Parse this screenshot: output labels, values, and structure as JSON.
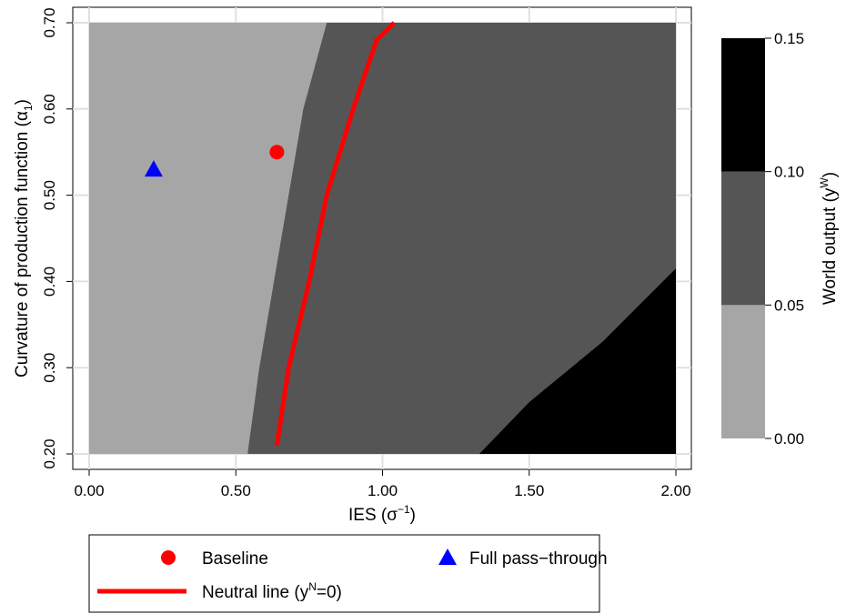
{
  "chart_data": {
    "type": "contour",
    "xlabel": [
      "IES (σ",
      "−1",
      ")"
    ],
    "ylabel": [
      "Curvature of production function (α",
      "1",
      ")"
    ],
    "xlim": [
      0,
      2
    ],
    "ylim": [
      0.2,
      0.7
    ],
    "xticks": [
      {
        "value": 0,
        "label": "0.00"
      },
      {
        "value": 0.5,
        "label": "0.50"
      },
      {
        "value": 1,
        "label": "1.00"
      },
      {
        "value": 1.5,
        "label": "1.50"
      },
      {
        "value": 2,
        "label": "2.00"
      }
    ],
    "yticks": [
      {
        "value": 0.2,
        "label": "0.20"
      },
      {
        "value": 0.3,
        "label": "0.30"
      },
      {
        "value": 0.4,
        "label": "0.40"
      },
      {
        "value": 0.5,
        "label": "0.50"
      },
      {
        "value": 0.6,
        "label": "0.60"
      },
      {
        "value": 0.7,
        "label": "0.70"
      }
    ],
    "grid": true,
    "colorbar": {
      "label": [
        "World output (y",
        "W",
        ")"
      ],
      "levels": [
        {
          "value": 0,
          "label": "0.00"
        },
        {
          "value": 0.05,
          "label": "0.05"
        },
        {
          "value": 0.1,
          "label": "0.10"
        },
        {
          "value": 0.15,
          "label": "0.15"
        }
      ],
      "colors": [
        "#a6a6a6",
        "#555555",
        "#000000"
      ]
    },
    "boundaries": [
      {
        "x": [
          0.54,
          0.58,
          0.63,
          0.68,
          0.73,
          0.81
        ],
        "y": [
          0.2,
          0.3,
          0.4,
          0.5,
          0.6,
          0.7
        ]
      },
      {
        "x": [
          1.33,
          1.5,
          1.75,
          2.0
        ],
        "y": [
          0.2,
          0.26,
          0.33,
          0.415
        ]
      }
    ],
    "neutral_line": {
      "name": [
        "Neutral line (y",
        "N",
        "=0)"
      ],
      "color": "#ff0000",
      "x": [
        0.64,
        0.68,
        0.75,
        0.81,
        0.9,
        0.98,
        1.04
      ],
      "y": [
        0.21,
        0.3,
        0.4,
        0.5,
        0.6,
        0.68,
        0.7
      ]
    },
    "points": [
      {
        "name": "Baseline",
        "marker": "circle",
        "color": "#ff0000",
        "x": 0.64,
        "y": 0.55
      },
      {
        "name": "Full pass−through",
        "marker": "triangle",
        "color": "#0000ff",
        "x": 0.22,
        "y": 0.53
      }
    ]
  }
}
